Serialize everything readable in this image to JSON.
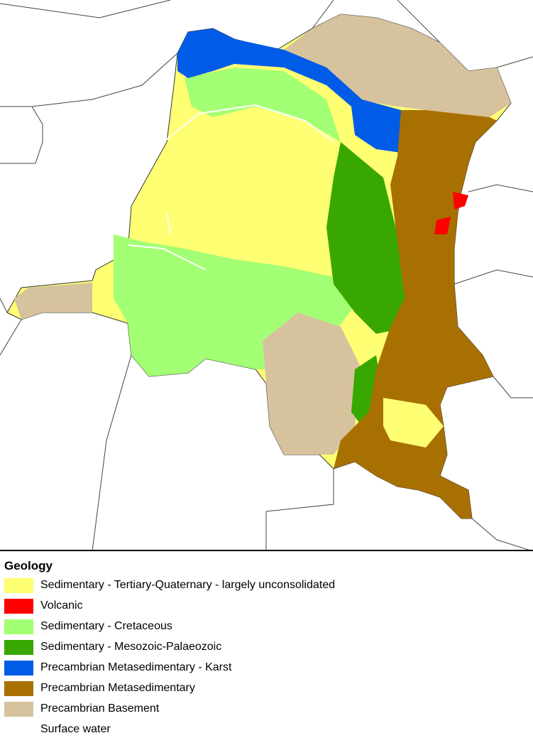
{
  "legend": {
    "title": "Geology",
    "items": [
      {
        "label": "Sedimentary - Tertiary-Quaternary - largely unconsolidated",
        "color": "#FFFF73"
      },
      {
        "label": "Volcanic",
        "color": "#FF0000"
      },
      {
        "label": "Sedimentary - Cretaceous",
        "color": "#A3FF73"
      },
      {
        "label": "Sedimentary - Mesozoic-Palaeozoic",
        "color": "#38A800"
      },
      {
        "label": "Precambrian Metasedimentary - Karst",
        "color": "#005CE6"
      },
      {
        "label": "Precambrian Metasedimentary",
        "color": "#A87000"
      },
      {
        "label": "Precambrian Basement",
        "color": "#D7C29E"
      },
      {
        "label": "Surface water",
        "color": "#FFFFFF"
      }
    ]
  }
}
